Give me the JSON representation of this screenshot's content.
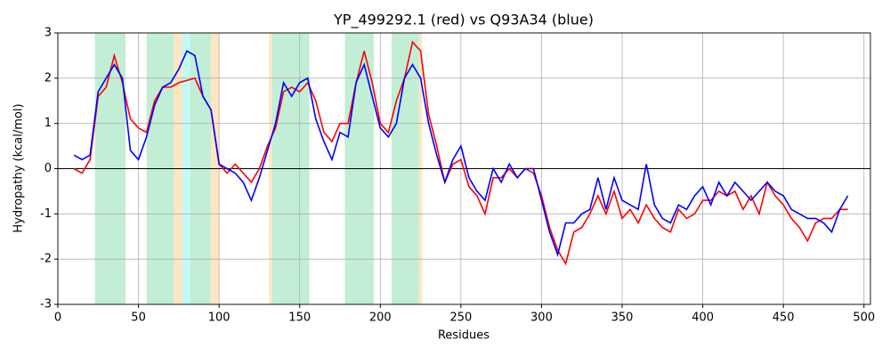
{
  "chart_data": {
    "type": "line",
    "title": "YP_499292.1 (red) vs Q93A34 (blue)",
    "xlabel": "Residues",
    "ylabel": "Hydropathy (kcal/mol)",
    "xlim": [
      0,
      504
    ],
    "ylim": [
      -3,
      3
    ],
    "xticks": [
      0,
      50,
      100,
      150,
      200,
      250,
      300,
      350,
      400,
      450,
      500
    ],
    "yticks": [
      -3,
      -2,
      -1,
      0,
      1,
      2,
      3
    ],
    "grid": true,
    "hline": 0,
    "regions": [
      {
        "start": 23,
        "end": 42,
        "color": "#c2eed6"
      },
      {
        "start": 55,
        "end": 72,
        "color": "#c2eed6"
      },
      {
        "start": 72,
        "end": 77,
        "color": "#fde6c0"
      },
      {
        "start": 77,
        "end": 82,
        "color": "#c4faf6"
      },
      {
        "start": 82,
        "end": 95,
        "color": "#c2eed6"
      },
      {
        "start": 95,
        "end": 100,
        "color": "#fde6c0"
      },
      {
        "start": 131,
        "end": 133,
        "color": "#fde6c0"
      },
      {
        "start": 133,
        "end": 156,
        "color": "#c2eed6"
      },
      {
        "start": 178,
        "end": 196,
        "color": "#c2eed6"
      },
      {
        "start": 207,
        "end": 224,
        "color": "#c2eed6"
      },
      {
        "start": 224,
        "end": 226,
        "color": "#fde6c0"
      }
    ],
    "x": [
      10,
      15,
      20,
      25,
      30,
      35,
      40,
      45,
      50,
      55,
      60,
      65,
      70,
      75,
      80,
      85,
      90,
      95,
      100,
      105,
      110,
      115,
      120,
      125,
      130,
      135,
      140,
      145,
      150,
      155,
      160,
      165,
      170,
      175,
      180,
      185,
      190,
      195,
      200,
      205,
      210,
      215,
      220,
      225,
      230,
      235,
      240,
      245,
      250,
      255,
      260,
      265,
      270,
      275,
      280,
      285,
      290,
      295,
      300,
      305,
      310,
      315,
      320,
      325,
      330,
      335,
      340,
      345,
      350,
      355,
      360,
      365,
      370,
      375,
      380,
      385,
      390,
      395,
      400,
      405,
      410,
      415,
      420,
      425,
      430,
      435,
      440,
      445,
      450,
      455,
      460,
      465,
      470,
      475,
      480,
      485,
      490
    ],
    "series": [
      {
        "color": "#ff0000",
        "values": [
          0.0,
          -0.1,
          0.2,
          1.6,
          1.8,
          2.5,
          1.9,
          1.1,
          0.9,
          0.8,
          1.5,
          1.8,
          1.8,
          1.9,
          1.95,
          2.0,
          1.6,
          1.3,
          0.1,
          -0.1,
          0.1,
          -0.1,
          -0.3,
          0.0,
          0.5,
          0.9,
          1.7,
          1.8,
          1.7,
          1.9,
          1.5,
          0.8,
          0.6,
          1.0,
          1.0,
          1.9,
          2.6,
          1.9,
          1.0,
          0.8,
          1.5,
          2.0,
          2.8,
          2.6,
          1.2,
          0.5,
          -0.3,
          0.1,
          0.2,
          -0.4,
          -0.6,
          -1.0,
          -0.2,
          -0.2,
          0.0,
          -0.2,
          0.0,
          -0.1,
          -0.6,
          -1.3,
          -1.8,
          -2.1,
          -1.4,
          -1.3,
          -1.0,
          -0.6,
          -1.0,
          -0.5,
          -1.1,
          -0.9,
          -1.2,
          -0.8,
          -1.1,
          -1.3,
          -1.4,
          -0.9,
          -1.1,
          -1.0,
          -0.7,
          -0.7,
          -0.5,
          -0.6,
          -0.5,
          -0.9,
          -0.6,
          -1.0,
          -0.3,
          -0.6,
          -0.8,
          -1.1,
          -1.3,
          -1.6,
          -1.2,
          -1.1,
          -1.1,
          -0.9,
          -0.9
        ]
      },
      {
        "color": "#0000ff",
        "values": [
          0.3,
          0.2,
          0.3,
          1.7,
          2.0,
          2.3,
          2.0,
          0.4,
          0.2,
          0.7,
          1.4,
          1.8,
          1.9,
          2.2,
          2.6,
          2.5,
          1.6,
          1.3,
          0.1,
          0.0,
          -0.1,
          -0.3,
          -0.7,
          -0.2,
          0.4,
          1.0,
          1.9,
          1.6,
          1.9,
          2.0,
          1.1,
          0.6,
          0.2,
          0.8,
          0.7,
          1.9,
          2.3,
          1.6,
          0.9,
          0.7,
          1.0,
          2.0,
          2.3,
          2.0,
          1.0,
          0.3,
          -0.3,
          0.2,
          0.5,
          -0.2,
          -0.5,
          -0.7,
          0.0,
          -0.3,
          0.1,
          -0.2,
          0.0,
          0.0,
          -0.7,
          -1.4,
          -1.9,
          -1.2,
          -1.2,
          -1.0,
          -0.9,
          -0.2,
          -0.9,
          -0.2,
          -0.7,
          -0.8,
          -0.9,
          0.1,
          -0.8,
          -1.1,
          -1.2,
          -0.8,
          -0.9,
          -0.6,
          -0.4,
          -0.8,
          -0.3,
          -0.6,
          -0.3,
          -0.5,
          -0.7,
          -0.5,
          -0.3,
          -0.5,
          -0.6,
          -0.9,
          -1.0,
          -1.1,
          -1.1,
          -1.2,
          -1.4,
          -0.9,
          -0.6
        ]
      }
    ]
  }
}
